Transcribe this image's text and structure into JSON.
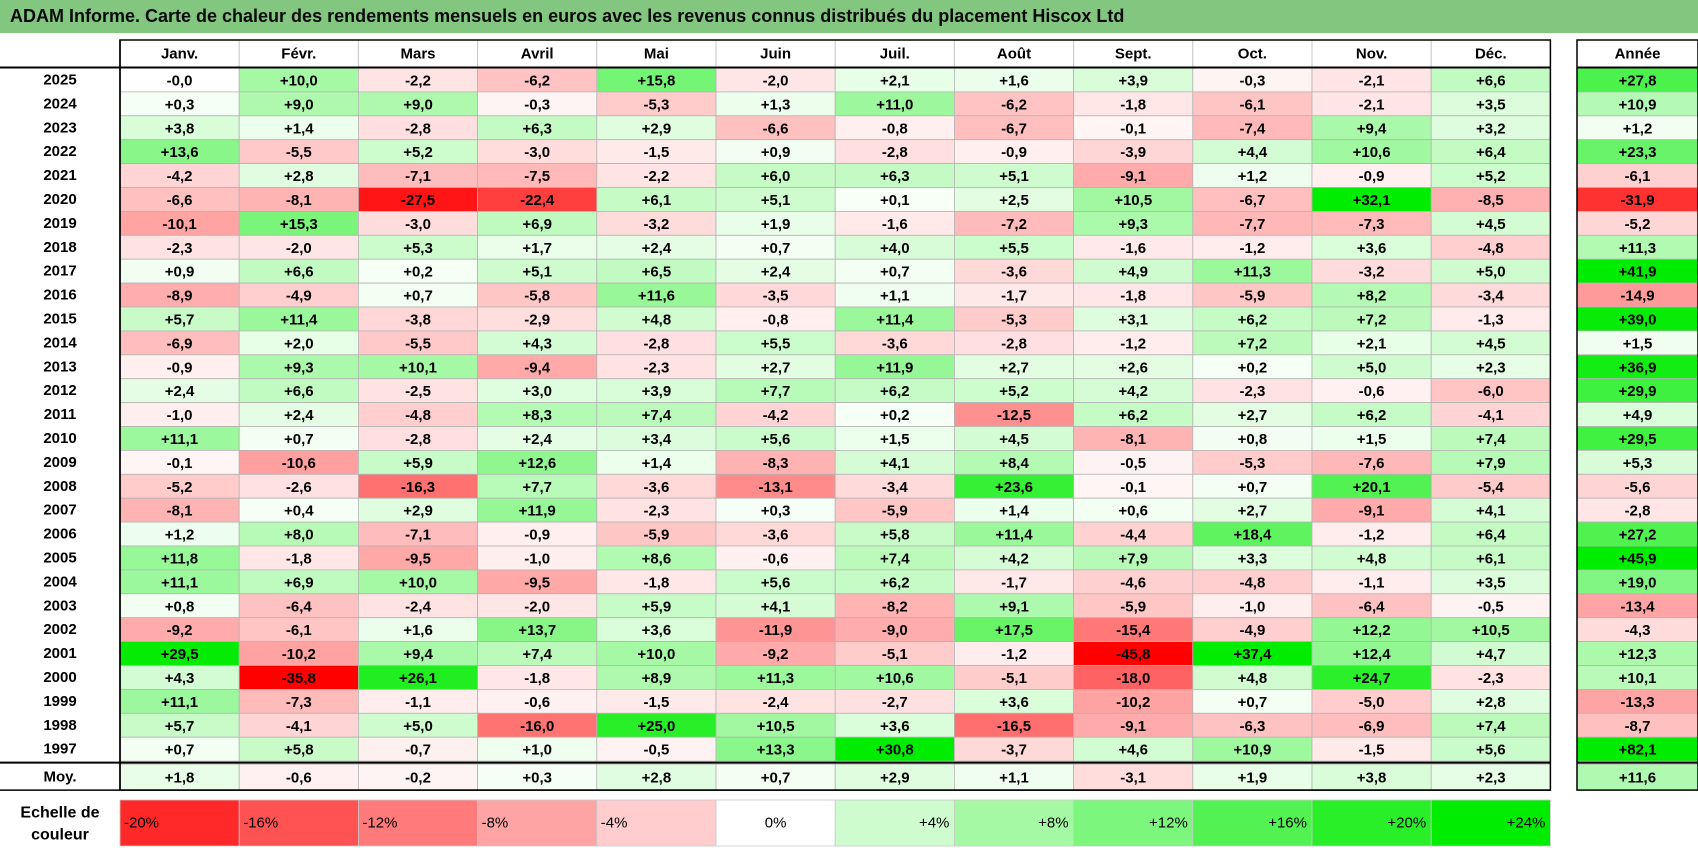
{
  "title": "ADAM Informe. Carte de chaleur des rendements mensuels en euros avec les revenus connus distribués du placement Hiscox Ltd",
  "chart_data": {
    "type": "heatmap",
    "columns": [
      "Janv.",
      "Févr.",
      "Mars",
      "Avril",
      "Mai",
      "Juin",
      "Juil.",
      "Août",
      "Sept.",
      "Oct.",
      "Nov.",
      "Déc."
    ],
    "annual_header": "Année",
    "rows": [
      {
        "year": "2025",
        "values": [
          -0.0,
          10.0,
          -2.2,
          -6.2,
          15.8,
          -2.0,
          2.1,
          1.6,
          3.9,
          -0.3,
          -2.1,
          6.6
        ],
        "annual": 27.8
      },
      {
        "year": "2024",
        "values": [
          0.3,
          9.0,
          9.0,
          -0.3,
          -5.3,
          1.3,
          11.0,
          -6.2,
          -1.8,
          -6.1,
          -2.1,
          3.5
        ],
        "annual": 10.9
      },
      {
        "year": "2023",
        "values": [
          3.8,
          1.4,
          -2.8,
          6.3,
          2.9,
          -6.6,
          -0.8,
          -6.7,
          -0.1,
          -7.4,
          9.4,
          3.2
        ],
        "annual": 1.2
      },
      {
        "year": "2022",
        "values": [
          13.6,
          -5.5,
          5.2,
          -3.0,
          -1.5,
          0.9,
          -2.8,
          -0.9,
          -3.9,
          4.4,
          10.6,
          6.4
        ],
        "annual": 23.3
      },
      {
        "year": "2021",
        "values": [
          -4.2,
          2.8,
          -7.1,
          -7.5,
          -2.2,
          6.0,
          6.3,
          5.1,
          -9.1,
          1.2,
          -0.9,
          5.2
        ],
        "annual": -6.1
      },
      {
        "year": "2020",
        "values": [
          -6.6,
          -8.1,
          -27.5,
          -22.4,
          6.1,
          5.1,
          0.1,
          2.5,
          10.5,
          -6.7,
          32.1,
          -8.5
        ],
        "annual": -31.9
      },
      {
        "year": "2019",
        "values": [
          -10.1,
          15.3,
          -3.0,
          6.9,
          -3.2,
          1.9,
          -1.6,
          -7.2,
          9.3,
          -7.7,
          -7.3,
          4.5
        ],
        "annual": -5.2
      },
      {
        "year": "2018",
        "values": [
          -2.3,
          -2.0,
          5.3,
          1.7,
          2.4,
          0.7,
          4.0,
          5.5,
          -1.6,
          -1.2,
          3.6,
          -4.8
        ],
        "annual": 11.3
      },
      {
        "year": "2017",
        "values": [
          0.9,
          6.6,
          0.2,
          5.1,
          6.5,
          2.4,
          0.7,
          -3.6,
          4.9,
          11.3,
          -3.2,
          5.0
        ],
        "annual": 41.9
      },
      {
        "year": "2016",
        "values": [
          -8.9,
          -4.9,
          0.7,
          -5.8,
          11.6,
          -3.5,
          1.1,
          -1.7,
          -1.8,
          -5.9,
          8.2,
          -3.4
        ],
        "annual": -14.9
      },
      {
        "year": "2015",
        "values": [
          5.7,
          11.4,
          -3.8,
          -2.9,
          4.8,
          -0.8,
          11.4,
          -5.3,
          3.1,
          6.2,
          7.2,
          -1.3
        ],
        "annual": 39.0
      },
      {
        "year": "2014",
        "values": [
          -6.9,
          2.0,
          -5.5,
          4.3,
          -2.8,
          5.5,
          -3.6,
          -2.8,
          -1.2,
          7.2,
          2.1,
          4.5
        ],
        "annual": 1.5
      },
      {
        "year": "2013",
        "values": [
          -0.9,
          9.3,
          10.1,
          -9.4,
          -2.3,
          2.7,
          11.9,
          2.7,
          2.6,
          0.2,
          5.0,
          2.3
        ],
        "annual": 36.9
      },
      {
        "year": "2012",
        "values": [
          2.4,
          6.6,
          -2.5,
          3.0,
          3.9,
          7.7,
          6.2,
          5.2,
          4.2,
          -2.3,
          -0.6,
          -6.0
        ],
        "annual": 29.9
      },
      {
        "year": "2011",
        "values": [
          -1.0,
          2.4,
          -4.8,
          8.3,
          7.4,
          -4.2,
          0.2,
          -12.5,
          6.2,
          2.7,
          6.2,
          -4.1
        ],
        "annual": 4.9
      },
      {
        "year": "2010",
        "values": [
          11.1,
          0.7,
          -2.8,
          2.4,
          3.4,
          5.6,
          1.5,
          4.5,
          -8.1,
          0.8,
          1.5,
          7.4
        ],
        "annual": 29.5
      },
      {
        "year": "2009",
        "values": [
          -0.1,
          -10.6,
          5.9,
          12.6,
          1.4,
          -8.3,
          4.1,
          8.4,
          -0.5,
          -5.3,
          -7.6,
          7.9
        ],
        "annual": 5.3
      },
      {
        "year": "2008",
        "values": [
          -5.2,
          -2.6,
          -16.3,
          7.7,
          -3.6,
          -13.1,
          -3.4,
          23.6,
          -0.1,
          0.7,
          20.1,
          -5.4
        ],
        "annual": -5.6
      },
      {
        "year": "2007",
        "values": [
          -8.1,
          0.4,
          2.9,
          11.9,
          -2.3,
          0.3,
          -5.9,
          1.4,
          0.6,
          2.7,
          -9.1,
          4.1
        ],
        "annual": -2.8
      },
      {
        "year": "2006",
        "values": [
          1.2,
          8.0,
          -7.1,
          -0.9,
          -5.9,
          -3.6,
          5.8,
          11.4,
          -4.4,
          18.4,
          -1.2,
          6.4
        ],
        "annual": 27.2
      },
      {
        "year": "2005",
        "values": [
          11.8,
          -1.8,
          -9.5,
          -1.0,
          8.6,
          -0.6,
          7.4,
          4.2,
          7.9,
          3.3,
          4.8,
          6.1
        ],
        "annual": 45.9
      },
      {
        "year": "2004",
        "values": [
          11.1,
          6.9,
          10.0,
          -9.5,
          -1.8,
          5.6,
          6.2,
          -1.7,
          -4.6,
          -4.8,
          -1.1,
          3.5
        ],
        "annual": 19.0
      },
      {
        "year": "2003",
        "values": [
          0.8,
          -6.4,
          -2.4,
          -2.0,
          5.9,
          4.1,
          -8.2,
          9.1,
          -5.9,
          -1.0,
          -6.4,
          -0.5
        ],
        "annual": -13.4
      },
      {
        "year": "2002",
        "values": [
          -9.2,
          -6.1,
          1.6,
          13.7,
          3.6,
          -11.9,
          -9.0,
          17.5,
          -15.4,
          -4.9,
          12.2,
          10.5
        ],
        "annual": -4.3
      },
      {
        "year": "2001",
        "values": [
          29.5,
          -10.2,
          9.4,
          7.4,
          10.0,
          -9.2,
          -5.1,
          -1.2,
          -45.8,
          37.4,
          12.4,
          4.7
        ],
        "annual": 12.3
      },
      {
        "year": "2000",
        "values": [
          4.3,
          -35.8,
          26.1,
          -1.8,
          8.9,
          11.3,
          10.6,
          -5.1,
          -18.0,
          4.8,
          24.7,
          -2.3
        ],
        "annual": 10.1
      },
      {
        "year": "1999",
        "values": [
          11.1,
          -7.3,
          -1.1,
          -0.6,
          -1.5,
          -2.4,
          -2.7,
          3.6,
          -10.2,
          0.7,
          -5.0,
          2.8
        ],
        "annual": -13.3
      },
      {
        "year": "1998",
        "values": [
          5.7,
          -4.1,
          5.0,
          -16.0,
          25.0,
          10.5,
          3.6,
          -16.5,
          -9.1,
          -6.3,
          -6.9,
          7.4
        ],
        "annual": -8.7
      },
      {
        "year": "1997",
        "values": [
          0.7,
          5.8,
          -0.7,
          1.0,
          -0.5,
          13.3,
          30.8,
          -3.7,
          4.6,
          10.9,
          -1.5,
          5.6
        ],
        "annual": 82.1
      }
    ],
    "average": {
      "label": "Moy.",
      "values": [
        1.8,
        -0.6,
        -0.2,
        0.3,
        2.8,
        0.7,
        2.9,
        1.1,
        -3.1,
        1.9,
        3.8,
        2.3
      ],
      "annual": 11.6
    },
    "scale": {
      "label_line1": "Echelle de",
      "label_line2": "couleur",
      "steps": [
        {
          "label": "-20%",
          "value": -20,
          "align": "left"
        },
        {
          "label": "-16%",
          "value": -16,
          "align": "left"
        },
        {
          "label": "-12%",
          "value": -12,
          "align": "left"
        },
        {
          "label": "-8%",
          "value": -8,
          "align": "left"
        },
        {
          "label": "-4%",
          "value": -4,
          "align": "left"
        },
        {
          "label": "0%",
          "value": 0,
          "align": "center"
        },
        {
          "label": "+4%",
          "value": 4,
          "align": "right"
        },
        {
          "label": "+8%",
          "value": 8,
          "align": "right"
        },
        {
          "label": "+12%",
          "value": 12,
          "align": "right"
        },
        {
          "label": "+16%",
          "value": 16,
          "align": "right"
        },
        {
          "label": "+20%",
          "value": 20,
          "align": "right"
        },
        {
          "label": "+24%",
          "value": 24,
          "align": "right"
        }
      ]
    },
    "colors": {
      "title_bar": "#82c67f",
      "positive_max": "#00ea00",
      "negative_max": "#ff0000",
      "neutral": "#ffffff"
    }
  }
}
